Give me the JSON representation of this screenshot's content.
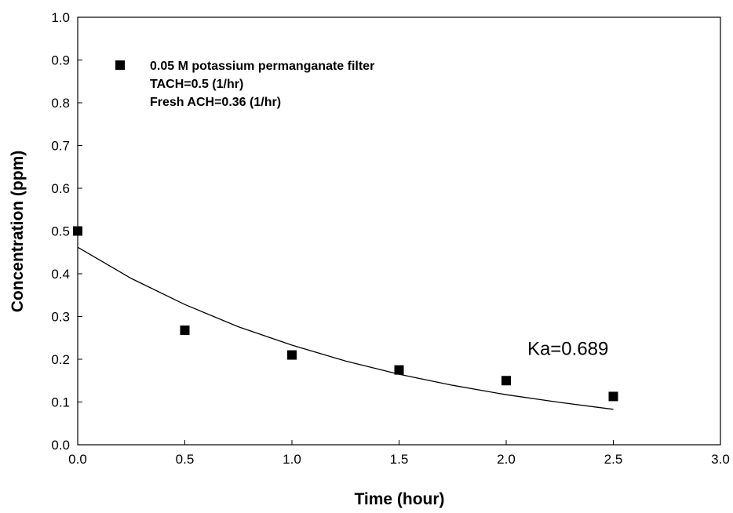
{
  "chart_data": {
    "type": "scatter",
    "title": "",
    "xlabel": "Time (hour)",
    "ylabel": "Concentration (ppm)",
    "xlim": [
      0.0,
      3.0
    ],
    "ylim": [
      0.0,
      1.0
    ],
    "x_ticks": [
      "0.0",
      "0.5",
      "1.0",
      "1.5",
      "2.0",
      "2.5",
      "3.0"
    ],
    "y_ticks": [
      "0.0",
      "0.1",
      "0.2",
      "0.3",
      "0.4",
      "0.5",
      "0.6",
      "0.7",
      "0.8",
      "0.9",
      "1.0"
    ],
    "grid": false,
    "legend_position": "top-left",
    "legend_lines": [
      "0.05 M potassium permanganate filter",
      "TACH=0.5 (1/hr)",
      "Fresh ACH=0.36 (1/hr)"
    ],
    "series": [
      {
        "name": "0.05 M potassium permanganate filter",
        "marker": "square",
        "color": "#000000",
        "x": [
          0.0,
          0.5,
          1.0,
          1.5,
          2.0,
          2.5
        ],
        "y": [
          0.5,
          0.268,
          0.21,
          0.175,
          0.15,
          0.113
        ]
      }
    ],
    "fit_curve": {
      "type": "exponential",
      "color": "#000000",
      "x": [
        0.0,
        0.25,
        0.5,
        0.75,
        1.0,
        1.25,
        1.5,
        1.75,
        2.0,
        2.25,
        2.5
      ],
      "y": [
        0.462,
        0.389,
        0.328,
        0.276,
        0.233,
        0.196,
        0.165,
        0.139,
        0.117,
        0.099,
        0.083
      ]
    },
    "annotation": {
      "text": "Ka=0.689",
      "x": 2.15,
      "y": 0.21
    }
  }
}
